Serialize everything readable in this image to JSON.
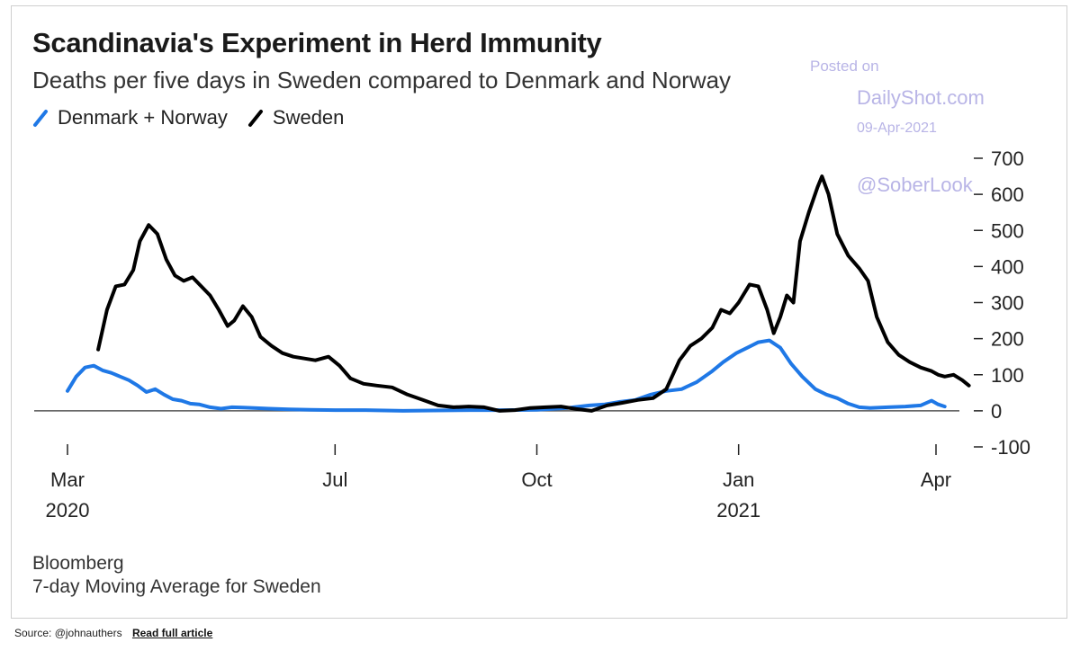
{
  "chart_data": {
    "type": "line",
    "title": "Scandinavia's Experiment in Herd Immunity",
    "subtitle": "Deaths per five days in Sweden compared to Denmark and Norway",
    "x_ticks": [
      {
        "date": "2020-03-01",
        "label": "Mar",
        "sublabel": "2020"
      },
      {
        "date": "2020-07-01",
        "label": "Jul",
        "sublabel": ""
      },
      {
        "date": "2020-10-01",
        "label": "Oct",
        "sublabel": ""
      },
      {
        "date": "2021-01-01",
        "label": "Jan",
        "sublabel": "2021"
      },
      {
        "date": "2021-04-01",
        "label": "Apr",
        "sublabel": ""
      }
    ],
    "y_ticks": [
      700,
      600,
      500,
      400,
      300,
      200,
      100,
      0,
      -100
    ],
    "ylim": [
      -100,
      700
    ],
    "legend_position": "top-left",
    "series": [
      {
        "name": "Denmark + Norway",
        "color": "#1f78e6",
        "points": [
          [
            "2020-03-01",
            55
          ],
          [
            "2020-03-05",
            95
          ],
          [
            "2020-03-09",
            120
          ],
          [
            "2020-03-13",
            125
          ],
          [
            "2020-03-17",
            112
          ],
          [
            "2020-03-21",
            105
          ],
          [
            "2020-03-25",
            95
          ],
          [
            "2020-03-29",
            85
          ],
          [
            "2020-04-02",
            70
          ],
          [
            "2020-04-06",
            52
          ],
          [
            "2020-04-10",
            60
          ],
          [
            "2020-04-14",
            45
          ],
          [
            "2020-04-18",
            32
          ],
          [
            "2020-04-22",
            28
          ],
          [
            "2020-04-26",
            20
          ],
          [
            "2020-04-30",
            18
          ],
          [
            "2020-05-05",
            10
          ],
          [
            "2020-05-10",
            6
          ],
          [
            "2020-05-15",
            10
          ],
          [
            "2020-05-20",
            9
          ],
          [
            "2020-05-25",
            8
          ],
          [
            "2020-06-01",
            6
          ],
          [
            "2020-06-10",
            4
          ],
          [
            "2020-06-20",
            3
          ],
          [
            "2020-07-01",
            2
          ],
          [
            "2020-07-15",
            2
          ],
          [
            "2020-08-01",
            0
          ],
          [
            "2020-08-15",
            1
          ],
          [
            "2020-09-01",
            2
          ],
          [
            "2020-09-15",
            2
          ],
          [
            "2020-10-01",
            3
          ],
          [
            "2020-10-15",
            8
          ],
          [
            "2020-10-25",
            15
          ],
          [
            "2020-11-01",
            18
          ],
          [
            "2020-11-08",
            25
          ],
          [
            "2020-11-15",
            30
          ],
          [
            "2020-11-22",
            45
          ],
          [
            "2020-11-29",
            55
          ],
          [
            "2020-12-06",
            60
          ],
          [
            "2020-12-13",
            80
          ],
          [
            "2020-12-20",
            110
          ],
          [
            "2020-12-25",
            135
          ],
          [
            "2020-12-31",
            160
          ],
          [
            "2021-01-05",
            175
          ],
          [
            "2021-01-10",
            190
          ],
          [
            "2021-01-15",
            195
          ],
          [
            "2021-01-20",
            175
          ],
          [
            "2021-01-25",
            130
          ],
          [
            "2021-01-30",
            95
          ],
          [
            "2021-02-05",
            60
          ],
          [
            "2021-02-10",
            45
          ],
          [
            "2021-02-15",
            35
          ],
          [
            "2021-02-20",
            20
          ],
          [
            "2021-02-25",
            10
          ],
          [
            "2021-03-02",
            8
          ],
          [
            "2021-03-10",
            10
          ],
          [
            "2021-03-18",
            12
          ],
          [
            "2021-03-25",
            15
          ],
          [
            "2021-03-30",
            28
          ],
          [
            "2021-04-02",
            18
          ],
          [
            "2021-04-05",
            12
          ]
        ]
      },
      {
        "name": "Sweden",
        "color": "#000000",
        "points": [
          [
            "2020-03-15",
            170
          ],
          [
            "2020-03-19",
            280
          ],
          [
            "2020-03-23",
            345
          ],
          [
            "2020-03-27",
            350
          ],
          [
            "2020-03-31",
            390
          ],
          [
            "2020-04-03",
            470
          ],
          [
            "2020-04-07",
            515
          ],
          [
            "2020-04-11",
            490
          ],
          [
            "2020-04-15",
            420
          ],
          [
            "2020-04-19",
            375
          ],
          [
            "2020-04-23",
            360
          ],
          [
            "2020-04-27",
            370
          ],
          [
            "2020-05-01",
            345
          ],
          [
            "2020-05-05",
            320
          ],
          [
            "2020-05-09",
            280
          ],
          [
            "2020-05-13",
            235
          ],
          [
            "2020-05-16",
            250
          ],
          [
            "2020-05-20",
            290
          ],
          [
            "2020-05-24",
            260
          ],
          [
            "2020-05-28",
            205
          ],
          [
            "2020-06-02",
            180
          ],
          [
            "2020-06-07",
            160
          ],
          [
            "2020-06-12",
            150
          ],
          [
            "2020-06-17",
            145
          ],
          [
            "2020-06-22",
            140
          ],
          [
            "2020-06-28",
            150
          ],
          [
            "2020-07-03",
            125
          ],
          [
            "2020-07-08",
            90
          ],
          [
            "2020-07-14",
            75
          ],
          [
            "2020-07-20",
            70
          ],
          [
            "2020-07-27",
            65
          ],
          [
            "2020-08-03",
            45
          ],
          [
            "2020-08-10",
            30
          ],
          [
            "2020-08-17",
            15
          ],
          [
            "2020-08-24",
            10
          ],
          [
            "2020-08-31",
            12
          ],
          [
            "2020-09-07",
            10
          ],
          [
            "2020-09-14",
            0
          ],
          [
            "2020-09-21",
            2
          ],
          [
            "2020-09-28",
            8
          ],
          [
            "2020-10-05",
            10
          ],
          [
            "2020-10-12",
            12
          ],
          [
            "2020-10-19",
            5
          ],
          [
            "2020-10-26",
            0
          ],
          [
            "2020-11-02",
            15
          ],
          [
            "2020-11-09",
            22
          ],
          [
            "2020-11-16",
            30
          ],
          [
            "2020-11-23",
            35
          ],
          [
            "2020-11-29",
            60
          ],
          [
            "2020-12-05",
            140
          ],
          [
            "2020-12-10",
            180
          ],
          [
            "2020-12-15",
            200
          ],
          [
            "2020-12-20",
            230
          ],
          [
            "2020-12-24",
            280
          ],
          [
            "2020-12-28",
            270
          ],
          [
            "2021-01-01",
            300
          ],
          [
            "2021-01-06",
            350
          ],
          [
            "2021-01-10",
            345
          ],
          [
            "2021-01-14",
            280
          ],
          [
            "2021-01-17",
            215
          ],
          [
            "2021-01-20",
            260
          ],
          [
            "2021-01-23",
            320
          ],
          [
            "2021-01-26",
            300
          ],
          [
            "2021-01-29",
            470
          ],
          [
            "2021-02-02",
            550
          ],
          [
            "2021-02-06",
            620
          ],
          [
            "2021-02-08",
            650
          ],
          [
            "2021-02-11",
            600
          ],
          [
            "2021-02-15",
            490
          ],
          [
            "2021-02-20",
            430
          ],
          [
            "2021-02-25",
            395
          ],
          [
            "2021-03-01",
            360
          ],
          [
            "2021-03-05",
            260
          ],
          [
            "2021-03-10",
            190
          ],
          [
            "2021-03-15",
            155
          ],
          [
            "2021-03-20",
            135
          ],
          [
            "2021-03-25",
            120
          ],
          [
            "2021-03-30",
            110
          ],
          [
            "2021-04-02",
            100
          ],
          [
            "2021-04-05",
            95
          ],
          [
            "2021-04-09",
            100
          ],
          [
            "2021-04-13",
            85
          ],
          [
            "2021-04-16",
            70
          ]
        ]
      }
    ],
    "source": "Bloomberg",
    "note": "7-day Moving Average for Sweden"
  },
  "watermark": {
    "line1": "Posted on",
    "line2": "DailyShot.com",
    "line3": "09-Apr-2021",
    "line4": "@SoberLook"
  },
  "footer": {
    "source": "Source: @johnauthers",
    "link": "Read full article"
  }
}
